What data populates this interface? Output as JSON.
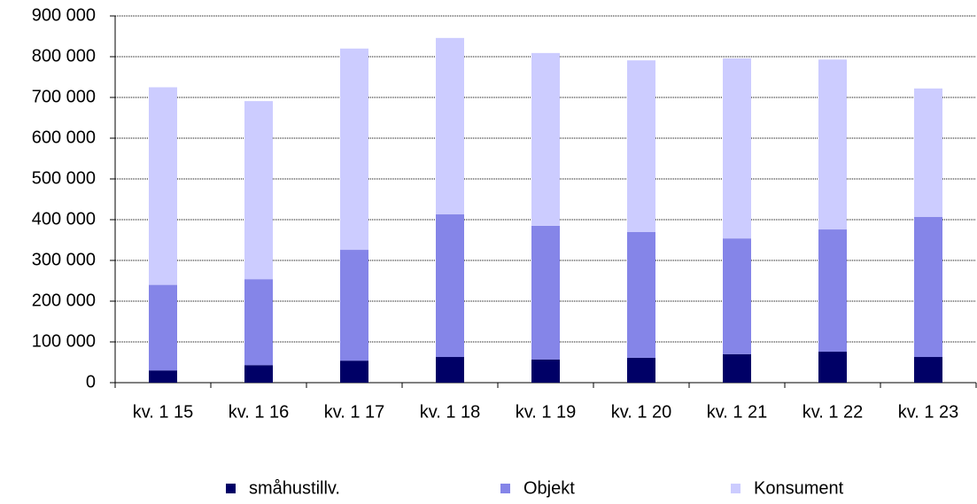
{
  "chart_data": {
    "type": "stacked_bar",
    "categories": [
      "kv. 1 15",
      "kv. 1 16",
      "kv. 1 17",
      "kv. 1 18",
      "kv. 1 19",
      "kv. 1 20",
      "kv. 1 21",
      "kv. 1 22",
      "kv. 1 23"
    ],
    "series": [
      {
        "name": "småhustillv.",
        "color": "#000066",
        "values": [
          30000,
          43000,
          54000,
          63000,
          57000,
          61000,
          70000,
          76000,
          63000
        ]
      },
      {
        "name": "Objekt",
        "color": "#8585e8",
        "values": [
          210000,
          211000,
          272000,
          350000,
          328000,
          309000,
          284000,
          300000,
          344000
        ]
      },
      {
        "name": "Konsument",
        "color": "#ccccff",
        "values": [
          485000,
          437000,
          494000,
          433000,
          424000,
          421000,
          442000,
          417000,
          315000
        ]
      }
    ],
    "ylim": [
      0,
      900000
    ],
    "yticks": [
      0,
      {
        "value": 100000,
        "label": "100 000"
      },
      {
        "value": 200000,
        "label": "200 000"
      },
      {
        "value": 300000,
        "label": "300 000"
      },
      {
        "value": 400000,
        "label": "400 000"
      },
      {
        "value": 500000,
        "label": "500 000"
      },
      {
        "value": 600000,
        "label": "600 000"
      },
      {
        "value": 700000,
        "label": "700 000"
      },
      {
        "value": 800000,
        "label": "800 000"
      },
      {
        "value": 900000,
        "label": "900 000"
      }
    ],
    "grid": true,
    "legend": "bottom"
  }
}
